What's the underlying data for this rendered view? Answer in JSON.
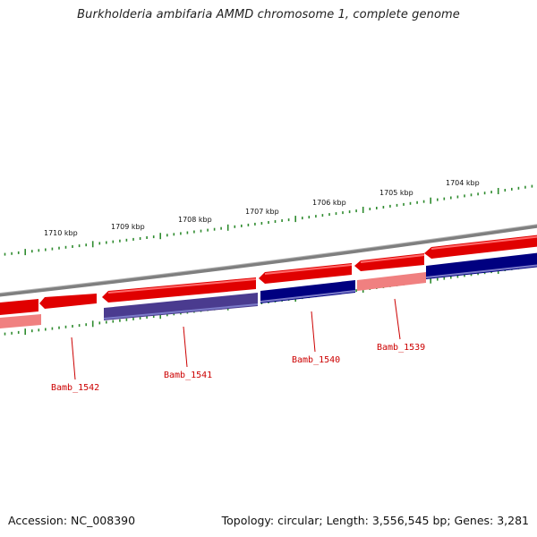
{
  "title": "Burkholderia ambifaria AMMD chromosome 1, complete genome",
  "footer": {
    "accession": "Accession: NC_008390",
    "stats": "Topology: circular; Length: 3,556,545 bp; Genes: 3,281"
  },
  "colors": {
    "forward_gene": "#e00000",
    "forward_gene_light": "#f08080",
    "reverse_gene": "#000080",
    "reverse_gene_light": "#4a3b8f",
    "backbone": "#808080",
    "tick": "#2e8b2e",
    "label": "#cc0000"
  },
  "kbp_labels": [
    "1704 kbp",
    "1705 kbp",
    "1706 kbp",
    "1707 kbp",
    "1708 kbp",
    "1709 kbp",
    "1710 kbp"
  ],
  "genes": [
    {
      "label": "Bamb_1539"
    },
    {
      "label": "Bamb_1540"
    },
    {
      "label": "Bamb_1541"
    },
    {
      "label": "Bamb_1542"
    }
  ]
}
